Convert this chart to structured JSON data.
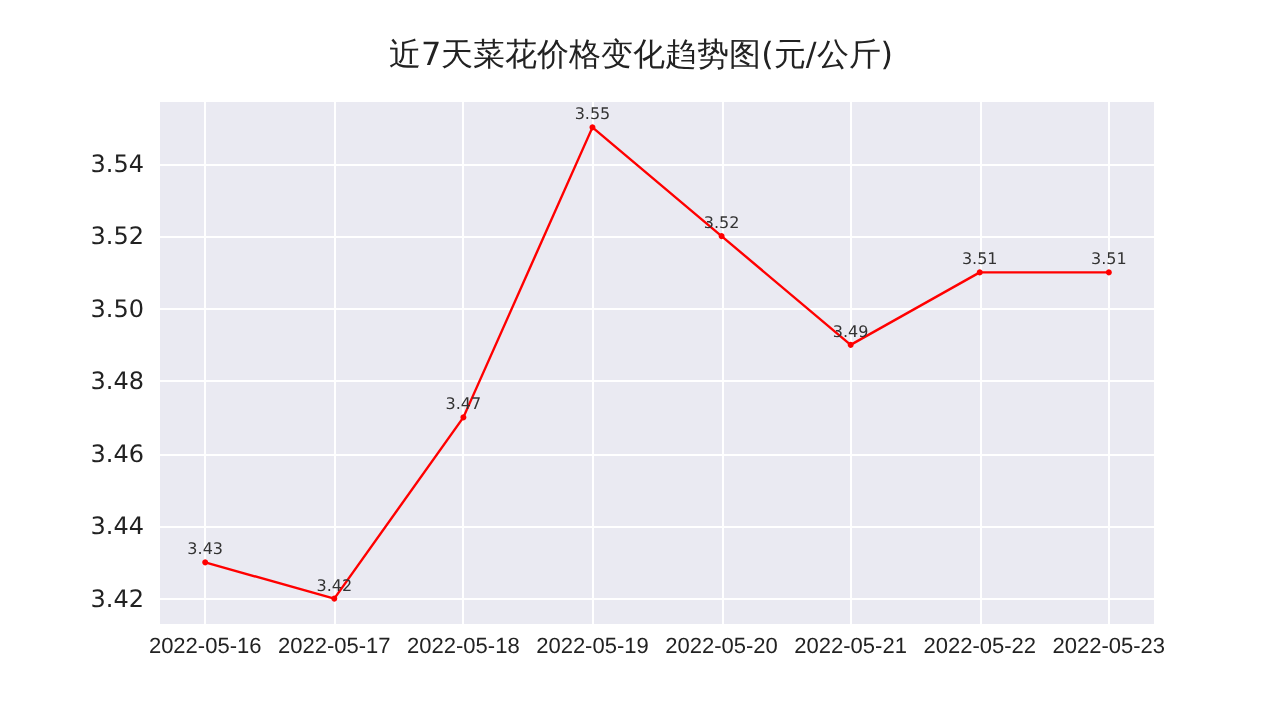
{
  "chart_data": {
    "type": "line",
    "title": "近7天菜花价格变化趋势图(元/公斤)",
    "categories": [
      "2022-05-16",
      "2022-05-17",
      "2022-05-18",
      "2022-05-19",
      "2022-05-20",
      "2022-05-21",
      "2022-05-22",
      "2022-05-23"
    ],
    "series": [
      {
        "color": "#ff0000",
        "values": [
          3.43,
          3.42,
          3.47,
          3.55,
          3.52,
          3.49,
          3.51,
          3.51
        ]
      }
    ],
    "ylim": [
      3.413,
      3.557
    ],
    "yticks": [
      3.42,
      3.44,
      3.46,
      3.48,
      {
        "value": 3.5,
        "label": "3.50"
      },
      3.52,
      3.54
    ],
    "grid": true,
    "data_labels": true,
    "marker": "circle",
    "line_style": "solid"
  }
}
